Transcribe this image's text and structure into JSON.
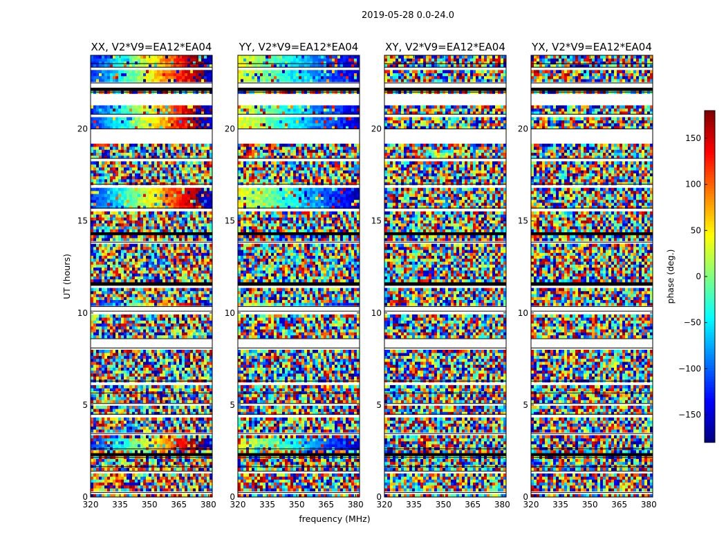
{
  "suptitle": "2019-05-28 0.0-24.0",
  "chart_data": {
    "type": "heatmap",
    "xlabel": "frequency (MHz)",
    "ylabel": "UT (hours)",
    "xlim": [
      320,
      382
    ],
    "ylim": [
      0,
      24
    ],
    "xticks": [
      320,
      335,
      350,
      365,
      380
    ],
    "yticks": [
      0,
      5,
      10,
      15,
      20
    ],
    "panels": [
      {
        "title": "XX, V2*V9=EA12*EA04",
        "pattern": "parallel_xx"
      },
      {
        "title": "YY, V2*V9=EA12*EA04",
        "pattern": "parallel_yy"
      },
      {
        "title": "XY, V2*V9=EA12*EA04",
        "pattern": "cross"
      },
      {
        "title": "YX, V2*V9=EA12*EA04",
        "pattern": "cross"
      }
    ],
    "colorbar": {
      "label": "phase (deg.)",
      "range": [
        -180,
        180
      ],
      "ticks": [
        -150,
        -100,
        -50,
        0,
        50,
        100,
        150
      ],
      "colormap": "jet"
    },
    "flagged_ut_ranges": [
      [
        0.15,
        0.25
      ],
      [
        1.25,
        1.4
      ],
      [
        1.55,
        1.65
      ],
      [
        2.05,
        2.15
      ],
      [
        2.55,
        2.62
      ],
      [
        3.3,
        3.45
      ],
      [
        4.35,
        4.5
      ],
      [
        5.0,
        5.08
      ],
      [
        5.55,
        5.65
      ],
      [
        6.15,
        6.3
      ],
      [
        7.95,
        8.1
      ],
      [
        8.2,
        8.6
      ],
      [
        9.95,
        10.1
      ],
      [
        10.15,
        10.35
      ],
      [
        11.35,
        11.5
      ],
      [
        13.75,
        13.85
      ],
      [
        15.55,
        15.7
      ],
      [
        16.85,
        17.0
      ],
      [
        18.25,
        18.4
      ],
      [
        19.25,
        20.0
      ],
      [
        20.7,
        20.8
      ],
      [
        21.25,
        22.0
      ],
      [
        22.25,
        22.5
      ],
      [
        23.25,
        23.35
      ],
      [
        23.45,
        23.55
      ]
    ],
    "dark_ut_ranges": [
      [
        2.25,
        2.45
      ],
      [
        10.5,
        10.62
      ],
      [
        11.55,
        11.65
      ],
      [
        14.3,
        14.38
      ],
      [
        22.1,
        22.2
      ]
    ]
  }
}
